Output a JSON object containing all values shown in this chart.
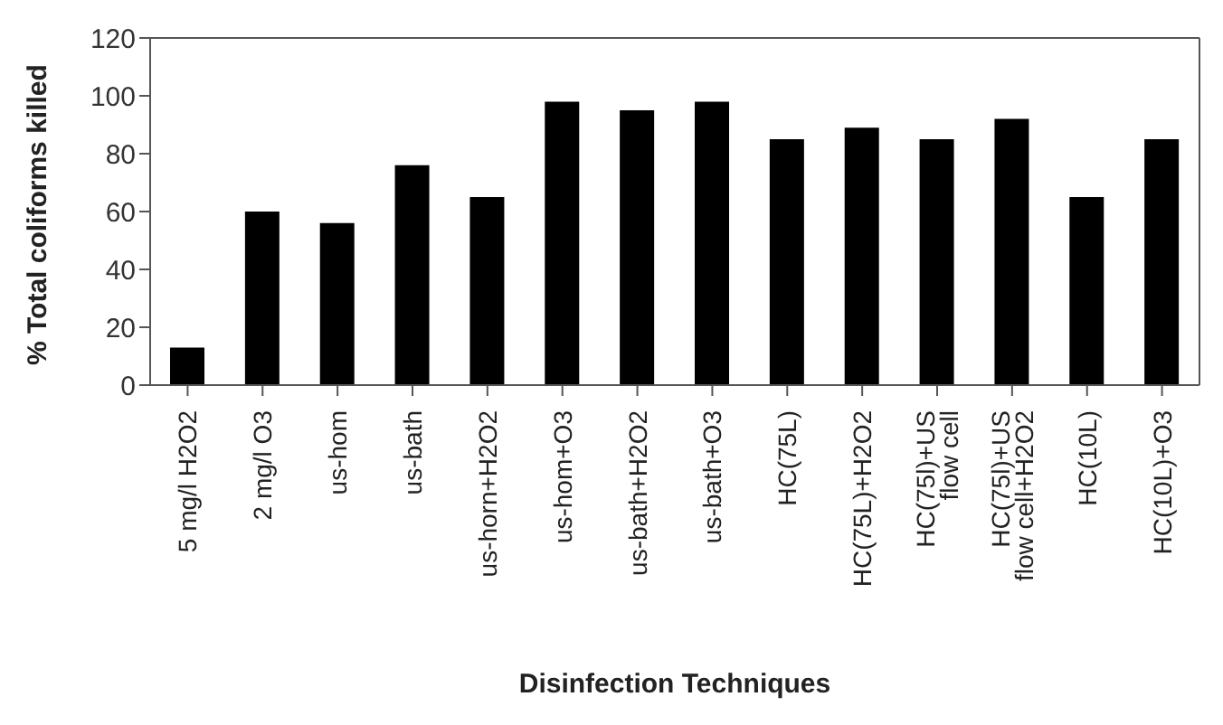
{
  "chart_data": {
    "type": "bar",
    "xlabel": "Disinfection Techniques",
    "ylabel": "% Total coliforms killed",
    "categories": [
      "5 mg/l H2O2",
      "2 mg/l O3",
      "us-hom",
      "us-bath",
      "us-horn+H2O2",
      "us-hom+O3",
      "us-bath+H2O2",
      "us-bath+O3",
      "HC(75L)",
      "HC(75L)+H2O2",
      "HC(75l)+US\nflow cell",
      "HC(75l)+US\nflow cell+H2O2",
      "HC(10L)",
      "HC(10L)+O3"
    ],
    "values": [
      13,
      60,
      56,
      76,
      65,
      98,
      95,
      98,
      85,
      89,
      85,
      92,
      65,
      85
    ],
    "color": "#000000",
    "ylim": [
      0,
      120
    ],
    "yticks": [
      0,
      20,
      40,
      60,
      80,
      100,
      120
    ],
    "grid": false,
    "legend": false
  }
}
